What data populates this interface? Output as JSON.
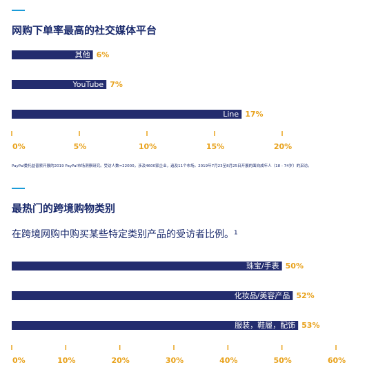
{
  "colors": {
    "bar": "#232c6e",
    "accent": "#e8a21c",
    "rule": "#1a9bd8",
    "text": "#1a2a6c"
  },
  "section1": {
    "title": "网购下单率最高的社交媒体平台",
    "footnote": "PayPal委托益普索开展的2019 PayPal市场洞察研究。受访人数=22000，涉及4600家企业，遍及11个市场。2019年7月23至8月25日开展的面向成年人（18 - 74岁）的采访。"
  },
  "section2": {
    "title": "最热门的跨境购物类别",
    "subtitle": "在跨境网购中购买某些特定类别产品的受访者比例。¹"
  },
  "chart_data": [
    {
      "type": "bar",
      "orientation": "horizontal",
      "title": "网购下单率最高的社交媒体平台",
      "categories": [
        "其他",
        "YouTube",
        "Line"
      ],
      "values": [
        6,
        7,
        17
      ],
      "value_labels": [
        "6%",
        "7%",
        "17%"
      ],
      "unit": "%",
      "xlim": [
        0,
        20
      ],
      "ticks": [
        0,
        5,
        10,
        15,
        20
      ],
      "tick_labels": [
        "0%",
        "5%",
        "10%",
        "15%",
        "20%"
      ]
    },
    {
      "type": "bar",
      "orientation": "horizontal",
      "title": "最热门的跨境购物类别",
      "categories": [
        "珠宝/手表",
        "化妆品/美容产品",
        "服装，鞋履，配饰"
      ],
      "values": [
        50,
        52,
        53
      ],
      "value_labels": [
        "50%",
        "52%",
        "53%"
      ],
      "unit": "%",
      "xlim": [
        0,
        60
      ],
      "ticks": [
        0,
        10,
        20,
        30,
        40,
        50,
        60
      ],
      "tick_labels": [
        "0%",
        "10%",
        "20%",
        "30%",
        "40%",
        "50%",
        "60%"
      ]
    }
  ]
}
